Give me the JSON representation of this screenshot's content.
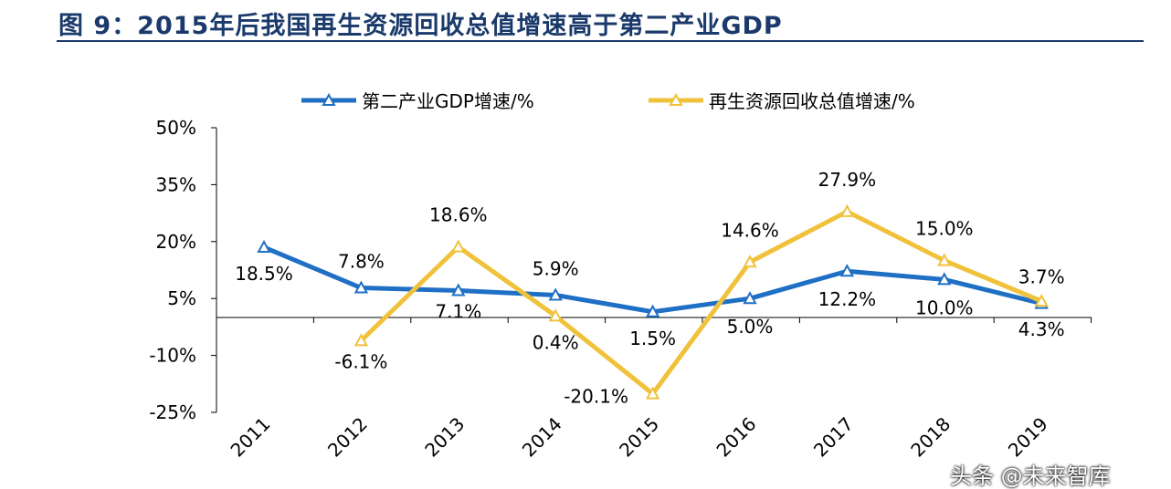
{
  "title": "图 9：2015年后我国再生资源回收总值增速高于第二产业GDP",
  "watermark": "头条 @未来智库",
  "chart_data": {
    "type": "line",
    "categories": [
      "2011",
      "2012",
      "2013",
      "2014",
      "2015",
      "2016",
      "2017",
      "2018",
      "2019"
    ],
    "ylim": [
      -25,
      50
    ],
    "yticks": [
      -25,
      -10,
      5,
      20,
      35,
      50
    ],
    "ytick_labels": [
      "-25%",
      "-10%",
      "5%",
      "20%",
      "35%",
      "50%"
    ],
    "legend_position": "top",
    "series": [
      {
        "name": "第二产业GDP增速/%",
        "color": "#1f6fc5",
        "values": [
          18.5,
          7.8,
          7.1,
          5.9,
          1.5,
          5.0,
          12.2,
          10.0,
          3.7
        ],
        "labels": [
          "18.5%",
          "7.8%",
          "7.1%",
          "5.9%",
          "1.5%",
          "5.0%",
          "12.2%",
          "10.0%",
          "3.7%"
        ]
      },
      {
        "name": "再生资源回收总值增速/%",
        "color": "#f0c23b",
        "values": [
          null,
          -6.1,
          18.6,
          0.4,
          -20.1,
          14.6,
          27.9,
          15.0,
          4.3
        ],
        "labels": [
          null,
          "-6.1%",
          "18.6%",
          "0.4%",
          "-20.1%",
          "14.6%",
          "27.9%",
          "15.0%",
          "4.3%"
        ]
      }
    ]
  }
}
